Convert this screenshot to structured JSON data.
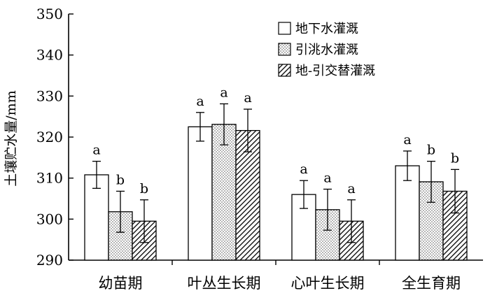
{
  "chart_data": {
    "type": "bar",
    "xlabel": "",
    "ylabel": "土壤贮水量/mm",
    "ylim": [
      290,
      350
    ],
    "yticks": [
      290,
      300,
      310,
      320,
      330,
      340,
      350
    ],
    "grid": false,
    "legend_position": "top-right",
    "categories": [
      "幼苗期",
      "叶丛生长期",
      "心叶生长期",
      "全生育期"
    ],
    "series": [
      {
        "name": "地下水灌溉",
        "pattern": "blank",
        "values": [
          310.8,
          322.5,
          306.0,
          313.0
        ],
        "errors": [
          3.3,
          3.5,
          3.4,
          3.6
        ],
        "letters": [
          "a",
          "a",
          "a",
          "a"
        ]
      },
      {
        "name": "引洮水灌溉",
        "pattern": "dotted",
        "values": [
          301.8,
          323.1,
          302.3,
          309.1
        ],
        "errors": [
          5.0,
          5.0,
          5.0,
          5.0
        ],
        "letters": [
          "b",
          "a",
          "a",
          "b"
        ]
      },
      {
        "name": "地-引交替灌溉",
        "pattern": "hatched",
        "values": [
          299.5,
          321.6,
          299.5,
          306.8
        ],
        "errors": [
          5.2,
          5.2,
          5.2,
          5.3
        ],
        "letters": [
          "b",
          "a",
          "a",
          "b"
        ]
      }
    ]
  }
}
